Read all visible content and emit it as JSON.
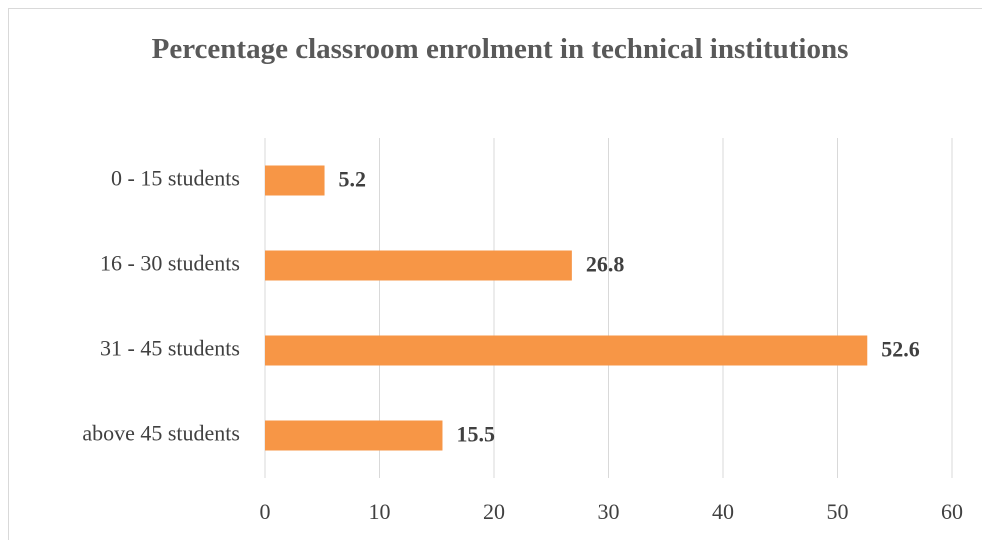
{
  "chart_data": {
    "type": "bar",
    "orientation": "horizontal",
    "title": "Percentage classroom enrolment in technical institutions",
    "categories": [
      "0 - 15 students",
      "16 - 30 students",
      "31 - 45 students",
      "above 45 students"
    ],
    "values": [
      5.2,
      26.8,
      52.6,
      15.5
    ],
    "color": "#f79646",
    "xlim": [
      0,
      60
    ],
    "xticks": [
      0,
      10,
      20,
      30,
      40,
      50,
      60
    ],
    "grid": true
  }
}
